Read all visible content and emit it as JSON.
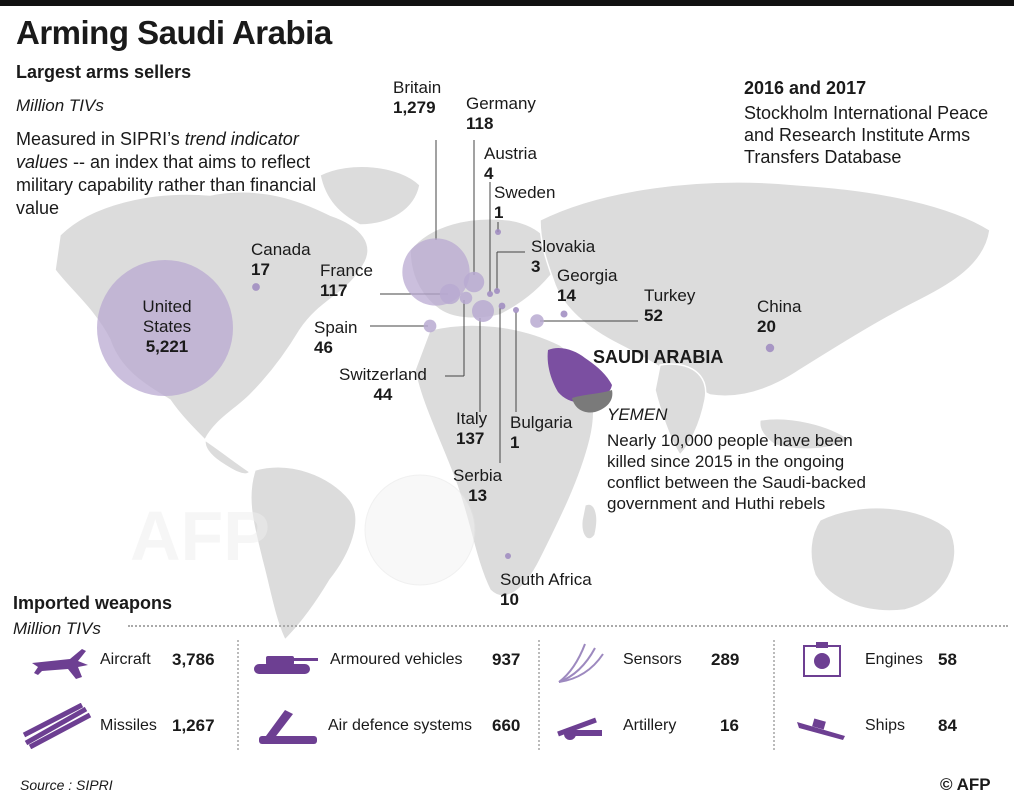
{
  "header": {
    "title": "Arming Saudi Arabia",
    "subtitle": "Largest arms sellers",
    "unit": "Million TIVs",
    "description_prefix": "Measured in SIPRI’s ",
    "description_em": "trend indicator values",
    "description_suffix": " -- an index that aims to reflect military capability rather than financial value",
    "period": "2016 and 2017",
    "source_db": "Stockholm International Peace and Research Institute Arms Transfers Database"
  },
  "colors": {
    "bubble": "#b9aad1",
    "bubble_dark": "#9d89bf",
    "saudi": "#7b4fa1",
    "yemen": "#7a7a7a",
    "land": "#dcdcdc",
    "icon": "#6d3f92"
  },
  "sellers": [
    {
      "name": "United States",
      "value": "5,221"
    },
    {
      "name": "Canada",
      "value": "17"
    },
    {
      "name": "Britain",
      "value": "1,279"
    },
    {
      "name": "Germany",
      "value": "118"
    },
    {
      "name": "Austria",
      "value": "4"
    },
    {
      "name": "Sweden",
      "value": "1"
    },
    {
      "name": "Slovakia",
      "value": "3"
    },
    {
      "name": "France",
      "value": "117"
    },
    {
      "name": "Georgia",
      "value": "14"
    },
    {
      "name": "Turkey",
      "value": "52"
    },
    {
      "name": "China",
      "value": "20"
    },
    {
      "name": "Spain",
      "value": "46"
    },
    {
      "name": "Switzerland",
      "value": "44"
    },
    {
      "name": "Italy",
      "value": "137"
    },
    {
      "name": "Bulgaria",
      "value": "1"
    },
    {
      "name": "Serbia",
      "value": "13"
    },
    {
      "name": "South Africa",
      "value": "10"
    }
  ],
  "saudi_label": "SAUDI ARABIA",
  "yemen": {
    "label": "YEMEN",
    "note": "Nearly 10,000 people have been killed since 2015 in the ongoing conflict between the Saudi-backed government and Huthi rebels"
  },
  "imports": {
    "title": "Imported weapons",
    "unit": "Million TIVs",
    "items": [
      {
        "label": "Aircraft",
        "value": "3,786",
        "icon": "aircraft-icon"
      },
      {
        "label": "Armoured vehicles",
        "value": "937",
        "icon": "tank-icon"
      },
      {
        "label": "Sensors",
        "value": "289",
        "icon": "sensor-icon"
      },
      {
        "label": "Engines",
        "value": "58",
        "icon": "engine-icon"
      },
      {
        "label": "Missiles",
        "value": "1,267",
        "icon": "missile-icon"
      },
      {
        "label": "Air defence systems",
        "value": "660",
        "icon": "air-defence-icon"
      },
      {
        "label": "Artillery",
        "value": "16",
        "icon": "artillery-icon"
      },
      {
        "label": "Ships",
        "value": "84",
        "icon": "ship-icon"
      }
    ]
  },
  "footer": {
    "source": "Source : SIPRI",
    "credit": "© AFP"
  }
}
